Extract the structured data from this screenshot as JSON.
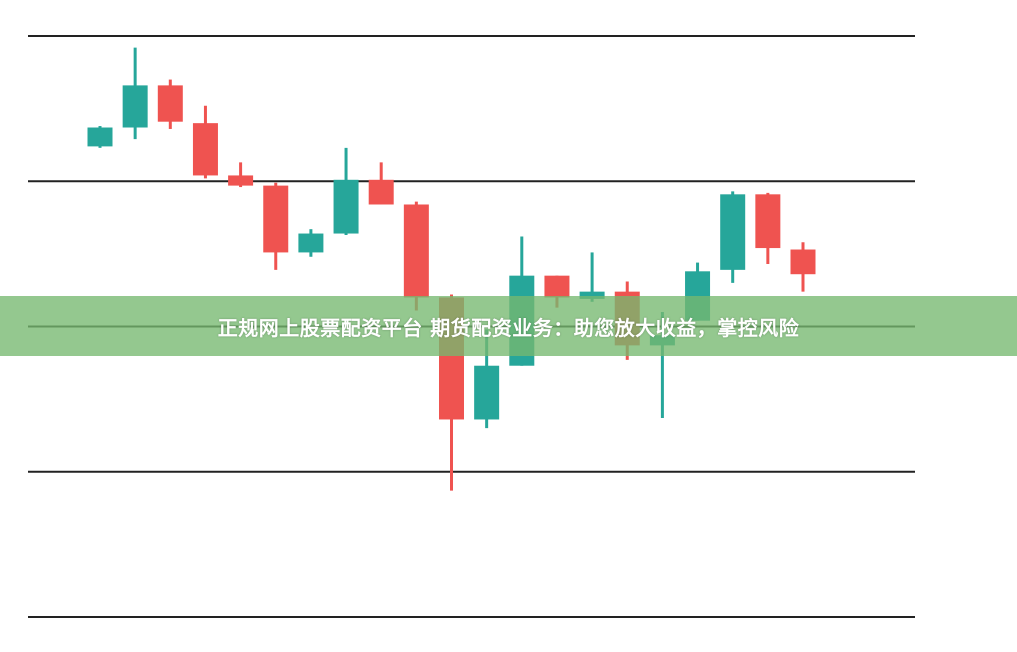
{
  "banner": {
    "text": "正规网上股票配资平台 期货配资业务：助您放大收益，掌控风险"
  },
  "chart_data": {
    "type": "candlestick",
    "title": "",
    "xlabel": "",
    "ylabel": "",
    "ylim": [
      0,
      400
    ],
    "gridlines": [
      0,
      100,
      200,
      300,
      400
    ],
    "grid": true,
    "colors": {
      "up": "#26a69a",
      "down": "#ef5350",
      "grid": "#222222"
    },
    "candles": [
      {
        "o": 324,
        "h": 338,
        "l": 323,
        "c": 337
      },
      {
        "o": 337,
        "h": 392,
        "l": 329,
        "c": 366
      },
      {
        "o": 366,
        "h": 370,
        "l": 336,
        "c": 341
      },
      {
        "o": 340,
        "h": 352,
        "l": 302,
        "c": 304
      },
      {
        "o": 304,
        "h": 313,
        "l": 296,
        "c": 297
      },
      {
        "o": 297,
        "h": 299,
        "l": 239,
        "c": 251
      },
      {
        "o": 251,
        "h": 267,
        "l": 248,
        "c": 264
      },
      {
        "o": 264,
        "h": 323,
        "l": 263,
        "c": 301
      },
      {
        "o": 301,
        "h": 313,
        "l": 284,
        "c": 284
      },
      {
        "o": 284,
        "h": 286,
        "l": 211,
        "c": 220
      },
      {
        "o": 220,
        "h": 222,
        "l": 87,
        "c": 136
      },
      {
        "o": 136,
        "h": 198,
        "l": 130,
        "c": 173
      },
      {
        "o": 173,
        "h": 262,
        "l": 173,
        "c": 235
      },
      {
        "o": 235,
        "h": 235,
        "l": 213,
        "c": 220
      },
      {
        "o": 219,
        "h": 251,
        "l": 217,
        "c": 224
      },
      {
        "o": 224,
        "h": 231,
        "l": 177,
        "c": 187
      },
      {
        "o": 187,
        "h": 210,
        "l": 137,
        "c": 194
      },
      {
        "o": 204,
        "h": 244,
        "l": 204,
        "c": 238
      },
      {
        "o": 239,
        "h": 293,
        "l": 230,
        "c": 291
      },
      {
        "o": 291,
        "h": 292,
        "l": 243,
        "c": 254
      },
      {
        "o": 253,
        "h": 258,
        "l": 224,
        "c": 236
      }
    ]
  }
}
